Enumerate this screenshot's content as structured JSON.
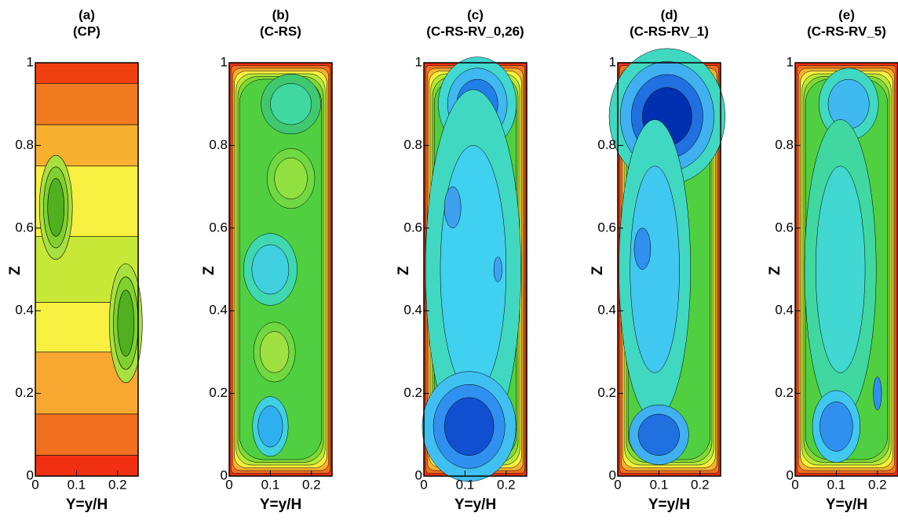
{
  "chart_data": [
    {
      "type": "contour",
      "title": "(a)",
      "subtitle": "(CP)",
      "xlabel": "Y=y/H",
      "ylabel": "Z",
      "xlim": [
        0,
        0.25
      ],
      "ylim": [
        0,
        1
      ],
      "xticks": [
        0,
        0.1,
        0.2
      ],
      "yticks": [
        0,
        0.2,
        0.4,
        0.6,
        0.8,
        1
      ]
    },
    {
      "type": "contour",
      "title": "(b)",
      "subtitle": "(C-RS)",
      "xlabel": "Y=y/H",
      "ylabel": "Z",
      "xlim": [
        0,
        0.25
      ],
      "ylim": [
        0,
        1
      ],
      "xticks": [
        0,
        0.1,
        0.2
      ],
      "yticks": [
        0,
        0.2,
        0.4,
        0.6,
        0.8,
        1
      ]
    },
    {
      "type": "contour",
      "title": "(c)",
      "subtitle": "(C-RS-RV_0,26)",
      "xlabel": "Y=y/H",
      "ylabel": "Z",
      "xlim": [
        0,
        0.25
      ],
      "ylim": [
        0,
        1
      ],
      "xticks": [
        0,
        0.1,
        0.2
      ],
      "yticks": [
        0,
        0.2,
        0.4,
        0.6,
        0.8,
        1
      ]
    },
    {
      "type": "contour",
      "title": "(d)",
      "subtitle": "(C-RS-RV_1)",
      "xlabel": "Y=y/H",
      "ylabel": "Z",
      "xlim": [
        0,
        0.25
      ],
      "ylim": [
        0,
        1
      ],
      "xticks": [
        0,
        0.1,
        0.2
      ],
      "yticks": [
        0,
        0.2,
        0.4,
        0.6,
        0.8,
        1
      ]
    },
    {
      "type": "contour",
      "title": "(e)",
      "subtitle": "(C-RS-RV_5)",
      "xlabel": "Y=y/H",
      "ylabel": "Z",
      "xlim": [
        0,
        0.25
      ],
      "ylim": [
        0,
        1
      ],
      "xticks": [
        0,
        0.1,
        0.2
      ],
      "yticks": [
        0,
        0.2,
        0.4,
        0.6,
        0.8,
        1
      ]
    }
  ]
}
